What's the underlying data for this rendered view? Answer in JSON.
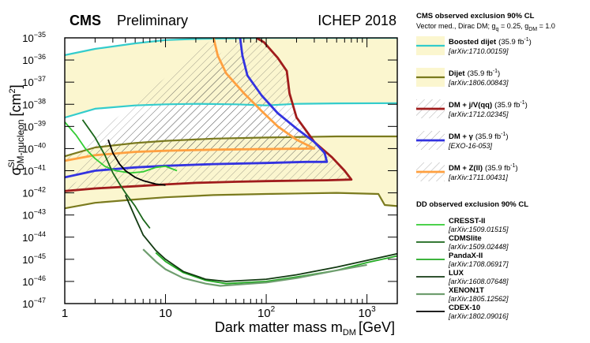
{
  "chart_data": {
    "type": "line",
    "title_bold": "CMS",
    "title_rest": "Preliminary",
    "conference": "ICHEP 2018",
    "xlabel_main": "Dark matter mass m",
    "xlabel_sub": "DM",
    "xlabel_unit": "[GeV]",
    "ylabel_main": "σ",
    "ylabel_sup": "SI",
    "ylabel_sub": "DM-nucleon",
    "ylabel_unit": "[cm",
    "ylabel_unit_sup": "2",
    "ylabel_unit_end": "]",
    "xscale": "log",
    "yscale": "log",
    "xlim": [
      1,
      2000
    ],
    "ylim": [
      1e-47,
      1e-35
    ],
    "x_ticks": [
      {
        "v": 1,
        "label": "1"
      },
      {
        "v": 10,
        "label": "10"
      },
      {
        "v": 100,
        "label": "10",
        "sup": "2"
      },
      {
        "v": 1000,
        "label": "10",
        "sup": "3"
      }
    ],
    "y_ticks": [
      {
        "e": -35,
        "label": "10",
        "sup": "−35"
      },
      {
        "e": -36,
        "label": "10",
        "sup": "−36"
      },
      {
        "e": -37,
        "label": "10",
        "sup": "−37"
      },
      {
        "e": -38,
        "label": "10",
        "sup": "−38"
      },
      {
        "e": -39,
        "label": "10",
        "sup": "−39"
      },
      {
        "e": -40,
        "label": "10",
        "sup": "−40"
      },
      {
        "e": -41,
        "label": "10",
        "sup": "−41"
      },
      {
        "e": -42,
        "label": "10",
        "sup": "−42"
      },
      {
        "e": -43,
        "label": "10",
        "sup": "−43"
      },
      {
        "e": -44,
        "label": "10",
        "sup": "−44"
      },
      {
        "e": -45,
        "label": "10",
        "sup": "−45"
      },
      {
        "e": -46,
        "label": "10",
        "sup": "−46"
      },
      {
        "e": -47,
        "label": "10",
        "sup": "−47"
      }
    ],
    "legend_placement": "right, outside plot",
    "legend_header_cms": "CMS observed exclusion 90% CL",
    "legend_subheader_cms": "Vector med., Dirac DM; g",
    "legend_subheader_q": "q",
    "legend_subheader_mid": " = 0.25, g",
    "legend_subheader_dm": "DM",
    "legend_subheader_end": " = 1.0",
    "legend_header_dd": "DD observed exclusion 90% CL",
    "series": [
      {
        "name": "Boosted dijet",
        "lumi": "(35.9 fb",
        "lumi_sup": "-1",
        "lumi_end": ")",
        "ref": "[arXiv:1710.00159]",
        "color": "#33cccc",
        "width": 2.2,
        "group": "cms",
        "fill": true,
        "points": [
          [
            1,
            -35.78
          ],
          [
            2,
            -35.5
          ],
          [
            5,
            -35.25
          ],
          [
            10,
            -35.1
          ],
          [
            20,
            -35.05
          ],
          [
            50,
            -35.02
          ],
          [
            100,
            -35.0
          ],
          [
            2000,
            -35.0
          ]
        ],
        "points2": [
          [
            1,
            -38.6
          ],
          [
            2,
            -38.2
          ],
          [
            5,
            -38.05
          ],
          [
            10,
            -38.0
          ],
          [
            20,
            -37.98
          ],
          [
            50,
            -38.0
          ],
          [
            100,
            -38.05
          ],
          [
            200,
            -37.98
          ],
          [
            500,
            -37.96
          ],
          [
            2000,
            -37.95
          ]
        ]
      },
      {
        "name": "Dijet",
        "lumi": "(35.9 fb",
        "lumi_sup": "-1",
        "lumi_end": ")",
        "ref": "[arXiv:1806.00843]",
        "color": "#7a7a1e",
        "width": 2.2,
        "group": "cms",
        "fill": true,
        "points": [
          [
            1,
            -40.35
          ],
          [
            2,
            -39.95
          ],
          [
            5,
            -39.75
          ],
          [
            10,
            -39.65
          ],
          [
            30,
            -39.55
          ],
          [
            100,
            -39.5
          ],
          [
            500,
            -39.45
          ],
          [
            2000,
            -39.45
          ]
        ],
        "points2": [
          [
            1,
            -42.7
          ],
          [
            2,
            -42.45
          ],
          [
            5,
            -42.3
          ],
          [
            10,
            -42.2
          ],
          [
            30,
            -42.1
          ],
          [
            100,
            -42.05
          ],
          [
            500,
            -42.0
          ],
          [
            1300,
            -42.05
          ],
          [
            1500,
            -42.55
          ],
          [
            2000,
            -42.6
          ]
        ]
      },
      {
        "name": "DM + j/V(qq)",
        "lumi": "(35.9 fb",
        "lumi_sup": "-1",
        "lumi_end": ")",
        "ref": "[arXiv:1712.02345]",
        "color": "#a01c1c",
        "width": 2.8,
        "group": "cms",
        "fill": false,
        "points": [
          [
            1,
            -41.92
          ],
          [
            2,
            -41.8
          ],
          [
            5,
            -41.7
          ],
          [
            10,
            -41.62
          ],
          [
            20,
            -41.55
          ],
          [
            50,
            -41.5
          ],
          [
            100,
            -41.47
          ],
          [
            200,
            -41.45
          ],
          [
            400,
            -41.43
          ],
          [
            700,
            -41.4
          ],
          [
            600,
            -41.0
          ],
          [
            450,
            -40.4
          ],
          [
            300,
            -39.7
          ],
          [
            250,
            -39.2
          ],
          [
            200,
            -38.6
          ],
          [
            170,
            -37.5
          ],
          [
            160,
            -36.5
          ],
          [
            130,
            -35.9
          ],
          [
            95,
            -35.2
          ],
          [
            80,
            -35.0
          ]
        ]
      },
      {
        "name": "DM + γ",
        "lumi": "(35.9 fb",
        "lumi_sup": "-1",
        "lumi_end": ")",
        "ref": "[EXO-16-053]",
        "color": "#3333e0",
        "width": 2.8,
        "group": "cms",
        "fill": false,
        "points": [
          [
            1,
            -41.3
          ],
          [
            2,
            -41.0
          ],
          [
            5,
            -40.85
          ],
          [
            10,
            -40.78
          ],
          [
            30,
            -40.7
          ],
          [
            100,
            -40.65
          ],
          [
            250,
            -40.6
          ],
          [
            400,
            -40.6
          ],
          [
            380,
            -40.2
          ],
          [
            300,
            -39.7
          ],
          [
            200,
            -39.1
          ],
          [
            130,
            -38.4
          ],
          [
            90,
            -37.6
          ],
          [
            65,
            -36.7
          ],
          [
            58,
            -35.8
          ],
          [
            55,
            -35.0
          ]
        ]
      },
      {
        "name": "DM + Z(ll)",
        "lumi": "(35.9 fb",
        "lumi_sup": "-1",
        "lumi_end": ")",
        "ref": "[arXiv:1711.00431]",
        "color": "#ffa040",
        "width": 2.8,
        "group": "cms",
        "fill": false,
        "points": [
          [
            1,
            -40.55
          ],
          [
            2,
            -40.3
          ],
          [
            5,
            -40.15
          ],
          [
            10,
            -40.1
          ],
          [
            30,
            -40.05
          ],
          [
            100,
            -40.02
          ],
          [
            300,
            -40.0
          ],
          [
            200,
            -39.6
          ],
          [
            130,
            -39.0
          ],
          [
            90,
            -38.3
          ],
          [
            60,
            -37.5
          ],
          [
            40,
            -36.6
          ],
          [
            33,
            -35.8
          ],
          [
            30,
            -35.0
          ]
        ]
      },
      {
        "name": "CRESST-II",
        "ref": "[arXiv:1509.01515]",
        "color": "#33cc33",
        "width": 1.8,
        "group": "dd",
        "fill": false,
        "points": [
          [
            1,
            -38.8
          ],
          [
            1.3,
            -39.4
          ],
          [
            1.6,
            -40.0
          ],
          [
            2.0,
            -40.45
          ],
          [
            2.5,
            -40.8
          ],
          [
            3.2,
            -41.0
          ],
          [
            4.5,
            -41.1
          ],
          [
            6,
            -41.05
          ],
          [
            8,
            -40.85
          ],
          [
            10,
            -40.8
          ],
          [
            13,
            -41.0
          ]
        ]
      },
      {
        "name": "CDMSlite",
        "ref": "[arXiv:1509.02448]",
        "color": "#1a661a",
        "width": 1.8,
        "group": "dd",
        "fill": false,
        "points": [
          [
            1.5,
            -38.7
          ],
          [
            2,
            -39.5
          ],
          [
            2.5,
            -40.3
          ],
          [
            3,
            -41.1
          ],
          [
            3.5,
            -41.6
          ],
          [
            4,
            -42.0
          ],
          [
            5,
            -42.6
          ],
          [
            6,
            -43.2
          ],
          [
            7,
            -43.6
          ]
        ]
      },
      {
        "name": "PandaX-II",
        "ref": "[arXiv:1708.06917]",
        "color": "#22aa22",
        "width": 1.8,
        "group": "dd",
        "fill": false,
        "points": [
          [
            8,
            -44.7
          ],
          [
            10,
            -45.1
          ],
          [
            15,
            -45.6
          ],
          [
            25,
            -45.95
          ],
          [
            40,
            -46.1
          ],
          [
            100,
            -46.0
          ],
          [
            200,
            -45.8
          ],
          [
            500,
            -45.5
          ],
          [
            1000,
            -45.15
          ],
          [
            2000,
            -44.85
          ]
        ]
      },
      {
        "name": "LUX",
        "ref": "[arXiv:1608.07648]",
        "color": "#123a12",
        "width": 1.8,
        "group": "dd",
        "fill": false,
        "points": [
          [
            4,
            -42.1
          ],
          [
            5,
            -43.1
          ],
          [
            6,
            -43.9
          ],
          [
            8,
            -44.6
          ],
          [
            10,
            -45.0
          ],
          [
            15,
            -45.55
          ],
          [
            25,
            -45.9
          ],
          [
            40,
            -46.0
          ],
          [
            100,
            -45.9
          ],
          [
            200,
            -45.7
          ],
          [
            500,
            -45.35
          ],
          [
            1000,
            -45.05
          ],
          [
            2000,
            -44.75
          ]
        ]
      },
      {
        "name": "XENON1T",
        "ref": "[arXiv:1805.12562]",
        "color": "#6f9e6f",
        "width": 2.2,
        "group": "dd",
        "fill": false,
        "points": [
          [
            6,
            -44.55
          ],
          [
            8,
            -45.1
          ],
          [
            10,
            -45.45
          ],
          [
            15,
            -45.85
          ],
          [
            25,
            -46.1
          ],
          [
            35,
            -46.2
          ],
          [
            100,
            -46.05
          ],
          [
            200,
            -45.85
          ],
          [
            500,
            -45.5
          ],
          [
            1000,
            -45.25
          ]
        ]
      },
      {
        "name": "CDEX-10",
        "ref": "[arXiv:1802.09016]",
        "color": "#000000",
        "width": 1.8,
        "group": "dd",
        "fill": false,
        "points": [
          [
            2.7,
            -39.6
          ],
          [
            3,
            -40.2
          ],
          [
            3.5,
            -40.7
          ],
          [
            4,
            -41.0
          ],
          [
            5,
            -41.3
          ],
          [
            6,
            -41.45
          ],
          [
            8,
            -41.6
          ],
          [
            10,
            -41.65
          ]
        ]
      }
    ]
  }
}
